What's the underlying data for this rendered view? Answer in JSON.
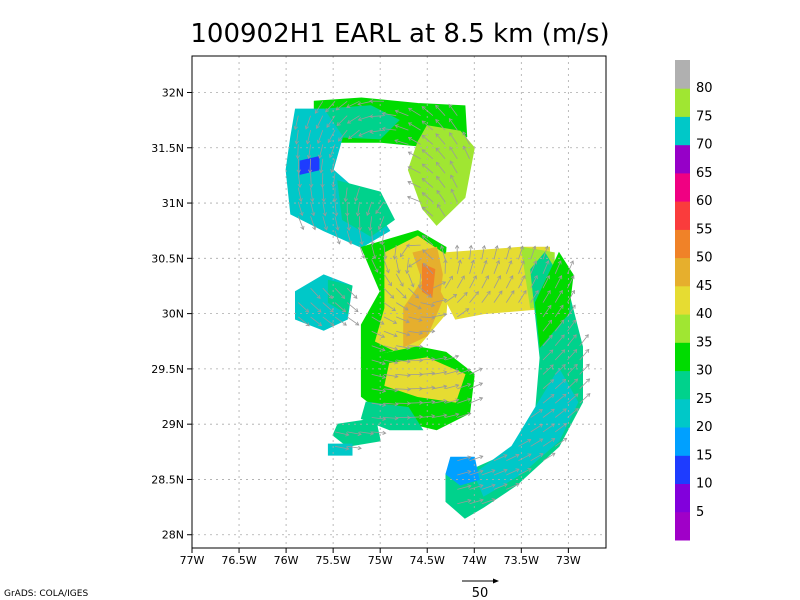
{
  "chart_data": {
    "type": "heatmap",
    "title": "100902H1 EARL at 8.5 km (m/s)",
    "xlabel": "",
    "ylabel": "",
    "xlim": [
      -77.0,
      -72.6
    ],
    "ylim": [
      27.88,
      32.33
    ],
    "x_ticks": [
      {
        "value": -77.0,
        "label": "77W"
      },
      {
        "value": -76.5,
        "label": "76.5W"
      },
      {
        "value": -76.0,
        "label": "76W"
      },
      {
        "value": -75.5,
        "label": "75.5W"
      },
      {
        "value": -75.0,
        "label": "75W"
      },
      {
        "value": -74.5,
        "label": "74.5W"
      },
      {
        "value": -74.0,
        "label": "74W"
      },
      {
        "value": -73.5,
        "label": "73.5W"
      },
      {
        "value": -73.0,
        "label": "73W"
      }
    ],
    "y_ticks": [
      {
        "value": 28.0,
        "label": "28N"
      },
      {
        "value": 28.5,
        "label": "28.5N"
      },
      {
        "value": 29.0,
        "label": "29N"
      },
      {
        "value": 29.5,
        "label": "29.5N"
      },
      {
        "value": 30.0,
        "label": "30N"
      },
      {
        "value": 30.5,
        "label": "30.5N"
      },
      {
        "value": 31.0,
        "label": "31N"
      },
      {
        "value": 31.5,
        "label": "31.5N"
      },
      {
        "value": 32.0,
        "label": "32N"
      }
    ],
    "grid": true,
    "colorbar": {
      "levels": [
        5,
        10,
        15,
        20,
        25,
        30,
        35,
        40,
        45,
        50,
        55,
        60,
        65,
        70,
        75,
        80
      ],
      "colors": [
        "#a000c8",
        "#8200dc",
        "#1e3cff",
        "#00a0ff",
        "#00c8c8",
        "#00d28c",
        "#00dc00",
        "#a0e632",
        "#e6dc32",
        "#e6af2d",
        "#f08228",
        "#fa3c3c",
        "#f00082",
        "#9600c8",
        "#00c8c8",
        "#a0e632",
        "#b0b0b0"
      ]
    },
    "wind_regions": [
      {
        "name": "north-arc",
        "value": 32,
        "points": [
          [
            -75.7,
            31.92
          ],
          [
            -75.2,
            31.95
          ],
          [
            -74.6,
            31.9
          ],
          [
            -74.1,
            31.88
          ],
          [
            -74.08,
            31.6
          ],
          [
            -74.4,
            31.5
          ],
          [
            -75.0,
            31.55
          ],
          [
            -75.5,
            31.55
          ],
          [
            -75.7,
            31.7
          ]
        ]
      },
      {
        "name": "north-arc-inner",
        "value": 26,
        "points": [
          [
            -75.6,
            31.85
          ],
          [
            -75.1,
            31.88
          ],
          [
            -74.8,
            31.75
          ],
          [
            -75.0,
            31.58
          ],
          [
            -75.5,
            31.6
          ]
        ]
      },
      {
        "name": "northeast-band",
        "value": 38,
        "points": [
          [
            -74.5,
            31.7
          ],
          [
            -74.15,
            31.65
          ],
          [
            -74.0,
            31.5
          ],
          [
            -74.1,
            31.05
          ],
          [
            -74.4,
            30.8
          ],
          [
            -74.55,
            30.95
          ],
          [
            -74.7,
            31.3
          ],
          [
            -74.6,
            31.55
          ]
        ]
      },
      {
        "name": "northwest-arc",
        "value": 20,
        "points": [
          [
            -75.9,
            31.85
          ],
          [
            -75.6,
            31.85
          ],
          [
            -75.4,
            31.6
          ],
          [
            -75.5,
            31.3
          ],
          [
            -75.1,
            31.0
          ],
          [
            -74.9,
            30.75
          ],
          [
            -75.2,
            30.6
          ],
          [
            -75.6,
            30.75
          ],
          [
            -75.95,
            30.9
          ],
          [
            -76.0,
            31.3
          ],
          [
            -75.95,
            31.6
          ]
        ]
      },
      {
        "name": "northwest-arc-core",
        "value": 14,
        "points": [
          [
            -75.85,
            31.38
          ],
          [
            -75.65,
            31.42
          ],
          [
            -75.65,
            31.3
          ],
          [
            -75.85,
            31.26
          ]
        ]
      },
      {
        "name": "northwest-arc-inner",
        "value": 28,
        "points": [
          [
            -75.45,
            31.2
          ],
          [
            -75.0,
            31.1
          ],
          [
            -74.85,
            30.85
          ],
          [
            -75.1,
            30.7
          ],
          [
            -75.4,
            30.85
          ]
        ]
      },
      {
        "name": "west-lobe",
        "value": 20,
        "points": [
          [
            -75.9,
            30.2
          ],
          [
            -75.6,
            30.35
          ],
          [
            -75.3,
            30.25
          ],
          [
            -75.35,
            29.95
          ],
          [
            -75.6,
            29.85
          ],
          [
            -75.9,
            29.95
          ]
        ]
      },
      {
        "name": "west-lobe-edge",
        "value": 27,
        "points": [
          [
            -75.55,
            30.3
          ],
          [
            -75.3,
            30.25
          ],
          [
            -75.35,
            30.0
          ],
          [
            -75.55,
            30.1
          ]
        ]
      },
      {
        "name": "center-green",
        "value": 33,
        "points": [
          [
            -75.2,
            30.6
          ],
          [
            -74.6,
            30.75
          ],
          [
            -74.3,
            30.6
          ],
          [
            -74.35,
            30.0
          ],
          [
            -74.7,
            29.7
          ],
          [
            -75.2,
            29.6
          ],
          [
            -75.2,
            29.9
          ],
          [
            -75.0,
            30.2
          ]
        ]
      },
      {
        "name": "center-ring",
        "value": 40,
        "points": [
          [
            -74.95,
            30.55
          ],
          [
            -74.6,
            30.7
          ],
          [
            -74.25,
            30.5
          ],
          [
            -74.3,
            30.0
          ],
          [
            -74.7,
            29.6
          ],
          [
            -75.05,
            29.75
          ],
          [
            -74.95,
            30.05
          ]
        ]
      },
      {
        "name": "eyewall",
        "value": 47,
        "points": [
          [
            -74.65,
            30.55
          ],
          [
            -74.4,
            30.6
          ],
          [
            -74.3,
            30.2
          ],
          [
            -74.5,
            29.8
          ],
          [
            -74.75,
            29.7
          ],
          [
            -74.75,
            30.05
          ],
          [
            -74.55,
            30.3
          ]
        ]
      },
      {
        "name": "eyewall-max",
        "value": 52,
        "points": [
          [
            -74.55,
            30.45
          ],
          [
            -74.42,
            30.4
          ],
          [
            -74.45,
            30.15
          ],
          [
            -74.55,
            30.2
          ]
        ]
      },
      {
        "name": "east-band",
        "value": 44,
        "points": [
          [
            -74.3,
            30.55
          ],
          [
            -73.5,
            30.6
          ],
          [
            -73.2,
            30.6
          ],
          [
            -73.2,
            30.05
          ],
          [
            -73.9,
            30.0
          ],
          [
            -74.2,
            29.95
          ],
          [
            -74.35,
            30.2
          ]
        ]
      },
      {
        "name": "east-band-edge",
        "value": 38,
        "points": [
          [
            -73.5,
            30.6
          ],
          [
            -73.15,
            30.55
          ],
          [
            -73.15,
            30.1
          ],
          [
            -73.4,
            30.05
          ]
        ]
      },
      {
        "name": "south-center",
        "value": 34,
        "points": [
          [
            -75.2,
            29.6
          ],
          [
            -74.6,
            29.7
          ],
          [
            -74.3,
            29.65
          ],
          [
            -74.0,
            29.45
          ],
          [
            -74.05,
            29.1
          ],
          [
            -74.4,
            28.95
          ],
          [
            -74.9,
            29.05
          ],
          [
            -75.2,
            29.25
          ]
        ]
      },
      {
        "name": "south-center-inner",
        "value": 40,
        "points": [
          [
            -74.9,
            29.55
          ],
          [
            -74.5,
            29.6
          ],
          [
            -74.1,
            29.45
          ],
          [
            -74.2,
            29.2
          ],
          [
            -74.6,
            29.25
          ],
          [
            -74.95,
            29.35
          ]
        ]
      },
      {
        "name": "south-center-low",
        "value": 28,
        "points": [
          [
            -75.15,
            29.2
          ],
          [
            -74.7,
            29.15
          ],
          [
            -74.55,
            28.95
          ],
          [
            -74.9,
            28.95
          ],
          [
            -75.2,
            29.05
          ]
        ]
      },
      {
        "name": "southwest-patch",
        "value": 27,
        "points": [
          [
            -75.45,
            29.0
          ],
          [
            -75.05,
            29.05
          ],
          [
            -75.0,
            28.85
          ],
          [
            -75.35,
            28.8
          ],
          [
            -75.5,
            28.9
          ]
        ]
      },
      {
        "name": "southwest-patch-edge",
        "value": 22,
        "points": [
          [
            -75.55,
            28.82
          ],
          [
            -75.3,
            28.82
          ],
          [
            -75.3,
            28.72
          ],
          [
            -75.55,
            28.72
          ]
        ]
      },
      {
        "name": "southeast-arc",
        "value": 28,
        "points": [
          [
            -73.25,
            30.55
          ],
          [
            -73.0,
            30.2
          ],
          [
            -72.85,
            29.7
          ],
          [
            -72.85,
            29.2
          ],
          [
            -73.1,
            28.8
          ],
          [
            -73.55,
            28.45
          ],
          [
            -73.9,
            28.25
          ],
          [
            -74.1,
            28.15
          ],
          [
            -74.3,
            28.3
          ],
          [
            -74.3,
            28.55
          ],
          [
            -74.0,
            28.6
          ],
          [
            -73.6,
            28.75
          ],
          [
            -73.35,
            29.1
          ],
          [
            -73.3,
            29.6
          ],
          [
            -73.35,
            30.0
          ],
          [
            -73.4,
            30.4
          ]
        ]
      },
      {
        "name": "southeast-arc-inner",
        "value": 24,
        "points": [
          [
            -73.1,
            29.5
          ],
          [
            -72.9,
            29.2
          ],
          [
            -73.1,
            28.85
          ],
          [
            -73.5,
            28.55
          ],
          [
            -73.9,
            28.35
          ],
          [
            -74.0,
            28.55
          ],
          [
            -73.6,
            28.8
          ],
          [
            -73.35,
            29.15
          ]
        ]
      },
      {
        "name": "southeast-arc-tip",
        "value": 19,
        "points": [
          [
            -74.25,
            28.7
          ],
          [
            -74.0,
            28.7
          ],
          [
            -73.95,
            28.5
          ],
          [
            -74.15,
            28.45
          ],
          [
            -74.3,
            28.55
          ]
        ]
      },
      {
        "name": "southeast-arc-top",
        "value": 34,
        "points": [
          [
            -73.1,
            30.55
          ],
          [
            -72.95,
            30.35
          ],
          [
            -73.0,
            30.0
          ],
          [
            -73.3,
            29.7
          ],
          [
            -73.35,
            30.1
          ]
        ]
      }
    ]
  },
  "colorbar_labels": [
    "5",
    "10",
    "15",
    "20",
    "25",
    "30",
    "35",
    "40",
    "45",
    "50",
    "55",
    "60",
    "65",
    "70",
    "75",
    "80"
  ],
  "reference_vector_label": "50",
  "credit": "GrADS: COLA/IGES"
}
